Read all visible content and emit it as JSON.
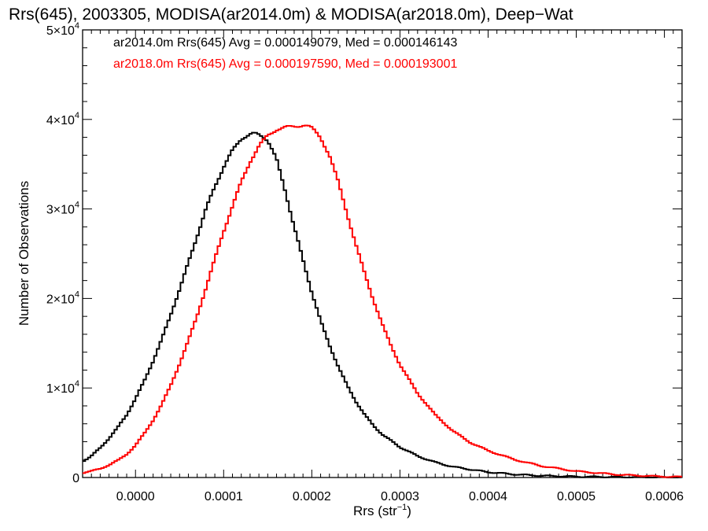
{
  "chart_data": {
    "type": "line",
    "title": "Rrs(645), 2003305, MODISA(ar2014.0m) & MODISA(ar2018.0m), Deep−Wat",
    "xlabel": "Rrs (str⁻¹)",
    "ylabel": "Number of Observations",
    "xlim": [
      -6e-05,
      0.00062
    ],
    "ylim": [
      0,
      50000
    ],
    "x_ticks": [
      0.0,
      0.0001,
      0.0002,
      0.0003,
      0.0004,
      0.0005,
      0.0006
    ],
    "x_tick_labels": [
      "0.0000",
      "0.0001",
      "0.0002",
      "0.0003",
      "0.0004",
      "0.0005",
      "0.0006"
    ],
    "y_ticks": [
      0,
      10000,
      20000,
      30000,
      40000,
      50000
    ],
    "y_tick_labels": [
      {
        "mant": "0",
        "exp": ""
      },
      {
        "mant": "1×10",
        "exp": "4"
      },
      {
        "mant": "2×10",
        "exp": "4"
      },
      {
        "mant": "3×10",
        "exp": "4"
      },
      {
        "mant": "4×10",
        "exp": "4"
      },
      {
        "mant": "5×10",
        "exp": "4"
      }
    ],
    "grid": false,
    "legend_position": "top-left",
    "series": [
      {
        "legend": "ar2014.0m Rrs(645) Avg = 0.000149079, Med = 0.000146143",
        "color": "#000000",
        "x": [
          -6e-05,
          -5e-05,
          -4e-05,
          -3e-05,
          -2e-05,
          -1e-05,
          0.0,
          1e-05,
          2e-05,
          3e-05,
          4e-05,
          5e-05,
          6e-05,
          7e-05,
          8e-05,
          9e-05,
          0.0001,
          0.00011,
          0.00012,
          0.00013,
          0.000135,
          0.00014,
          0.000145,
          0.00015,
          0.00016,
          0.00017,
          0.00018,
          0.00019,
          0.0002,
          0.00021,
          0.00022,
          0.00023,
          0.00024,
          0.00025,
          0.00026,
          0.00027,
          0.00028,
          0.0003,
          0.00032,
          0.00034,
          0.00036,
          0.00038,
          0.0004,
          0.00043,
          0.00046,
          0.0005,
          0.00055,
          0.0006,
          0.00062
        ],
        "y": [
          1800,
          2400,
          3300,
          4400,
          5600,
          7000,
          8800,
          10800,
          13000,
          15500,
          18200,
          21000,
          24000,
          27000,
          30000,
          32500,
          34700,
          36500,
          37900,
          38300,
          38400,
          38300,
          38100,
          37700,
          35500,
          32000,
          28000,
          24300,
          20700,
          17500,
          14800,
          12400,
          10300,
          8500,
          7000,
          5800,
          4800,
          3400,
          2400,
          1700,
          1200,
          900,
          600,
          350,
          200,
          100,
          50,
          20,
          10
        ]
      },
      {
        "legend": "ar2018.0m Rrs(645) Avg = 0.000197590, Med = 0.000193001",
        "color": "#ff0000",
        "x": [
          -6e-05,
          -5e-05,
          -4e-05,
          -3e-05,
          -2e-05,
          -1e-05,
          0.0,
          1e-05,
          2e-05,
          3e-05,
          4e-05,
          5e-05,
          6e-05,
          7e-05,
          8e-05,
          9e-05,
          0.0001,
          0.00011,
          0.00012,
          0.00013,
          0.00014,
          0.00015,
          0.00016,
          0.00017,
          0.00018,
          0.000185,
          0.00019,
          0.000195,
          0.0002,
          0.00021,
          0.00022,
          0.00023,
          0.00024,
          0.00025,
          0.00026,
          0.00027,
          0.00028,
          0.00029,
          0.0003,
          0.00032,
          0.00034,
          0.00036,
          0.00038,
          0.0004,
          0.00043,
          0.00046,
          0.0005,
          0.00055,
          0.0006,
          0.00062
        ],
        "y": [
          500,
          700,
          1000,
          1400,
          1900,
          2600,
          3600,
          4900,
          6400,
          8200,
          10300,
          12700,
          15300,
          18100,
          21200,
          24400,
          27500,
          30300,
          33000,
          35300,
          37000,
          38200,
          38900,
          39100,
          39200,
          39300,
          39400,
          39300,
          39000,
          38000,
          36000,
          33000,
          29500,
          26000,
          22800,
          19800,
          17100,
          14700,
          12600,
          9400,
          7000,
          5200,
          3900,
          3000,
          2000,
          1300,
          700,
          300,
          100,
          60
        ]
      }
    ]
  }
}
